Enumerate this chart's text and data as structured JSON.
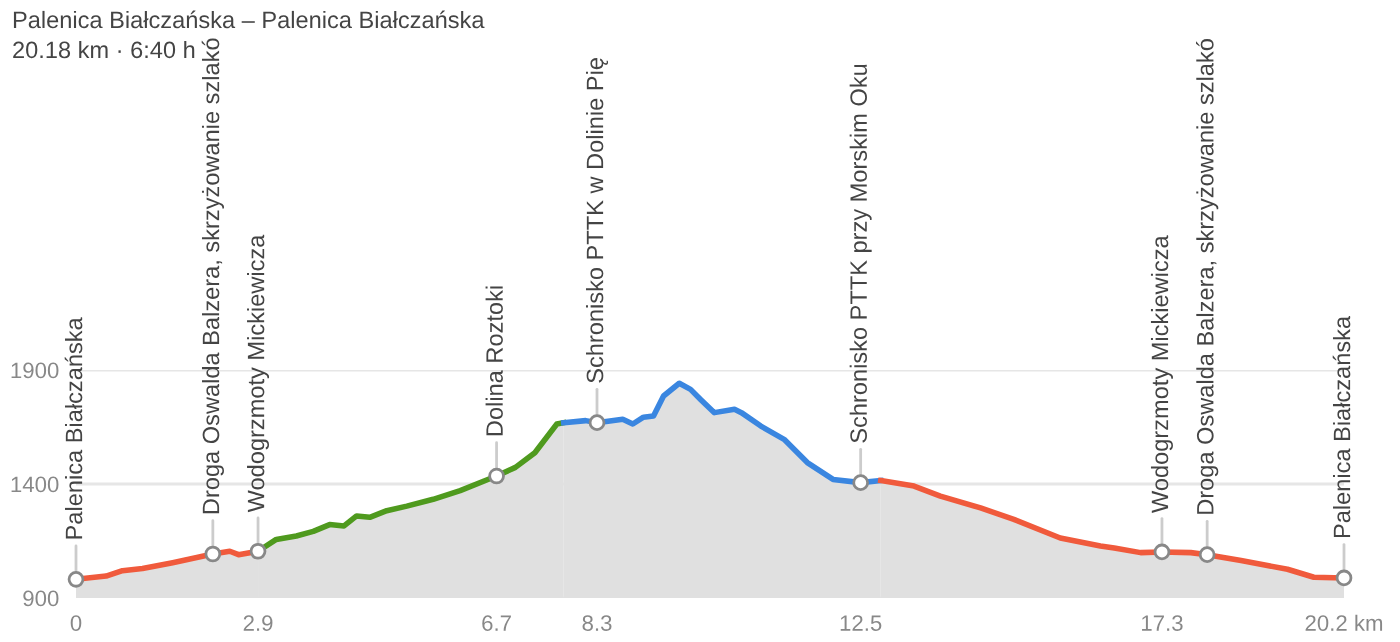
{
  "chart_data": {
    "type": "area",
    "title": "Palenica Białczańska – Palenica Białczańska",
    "subtitle": "20.18 km · 6:40 h",
    "series": [
      {
        "color": "#f05a3c",
        "x": [
          0,
          0.48,
          0.74,
          1.06,
          1.54,
          2.18,
          2.45,
          2.59,
          2.9
        ],
        "values": [
          982,
          996,
          1020,
          1029,
          1055,
          1093,
          1105,
          1090,
          1105
        ]
      },
      {
        "color": "#4f9a1e",
        "x": [
          2.9,
          3.19,
          3.51,
          3.78,
          4.04,
          4.27,
          4.47,
          4.68,
          4.95,
          5.27,
          5.69,
          6.12,
          6.7,
          7.0,
          7.31,
          7.66,
          7.77
        ],
        "values": [
          1105,
          1157,
          1172,
          1192,
          1222,
          1216,
          1260,
          1254,
          1283,
          1303,
          1333,
          1371,
          1435,
          1473,
          1537,
          1663,
          1669
        ]
      },
      {
        "color": "#3a86e0",
        "x": [
          7.77,
          8.12,
          8.3,
          8.71,
          8.87,
          9.04,
          9.2,
          9.36,
          9.61,
          9.79,
          9.95,
          10.17,
          10.49,
          10.6,
          10.91,
          11.28,
          11.65,
          12.06,
          12.5,
          12.82
        ],
        "values": [
          1669,
          1678,
          1669,
          1684,
          1663,
          1693,
          1698,
          1786,
          1842,
          1815,
          1771,
          1713,
          1728,
          1713,
          1654,
          1596,
          1494,
          1420,
          1406,
          1415
        ]
      },
      {
        "color": "#f05a3c",
        "x": [
          12.82,
          13.35,
          13.77,
          14.41,
          14.94,
          15.68,
          16.32,
          16.54,
          16.96,
          17.3,
          17.76,
          18.02,
          18.56,
          19.3,
          19.72,
          20.2
        ],
        "values": [
          1415,
          1391,
          1347,
          1295,
          1245,
          1163,
          1128,
          1119,
          1099,
          1102,
          1099,
          1090,
          1064,
          1026,
          991,
          988
        ]
      }
    ],
    "annotations": [
      {
        "text": "Palenica Białczańska",
        "x": 0,
        "y": 982
      },
      {
        "text": "Droga Oswalda Balzera, skrzyżowanie szlakó",
        "x": 2.18,
        "y": 1093
      },
      {
        "text": "Wodogrzmoty Mickiewicza",
        "x": 2.9,
        "y": 1105
      },
      {
        "text": "Dolina Roztoki",
        "x": 6.7,
        "y": 1435
      },
      {
        "text": "Schronisko PTTK w Dolinie Pię",
        "x": 8.3,
        "y": 1669
      },
      {
        "text": "Schronisko PTTK przy Morskim Oku",
        "x": 12.5,
        "y": 1406
      },
      {
        "text": "Wodogrzmoty Mickiewicza",
        "x": 17.3,
        "y": 1102
      },
      {
        "text": "Droga Oswalda Balzera, skrzyżowanie szlakó",
        "x": 18.02,
        "y": 1090
      },
      {
        "text": "Palenica Białczańska",
        "x": 20.2,
        "y": 988
      }
    ],
    "xlim": [
      0,
      20.2
    ],
    "xticks": [
      0,
      2.9,
      6.7,
      8.3,
      12.5,
      17.3,
      {
        "value": 20.2,
        "label": "20.2 km"
      }
    ],
    "ylim": [
      900,
      1900
    ],
    "yticks": [
      900,
      1400,
      1900
    ],
    "grid": "y",
    "marker": "none",
    "line_style": "solid",
    "legend": false
  }
}
